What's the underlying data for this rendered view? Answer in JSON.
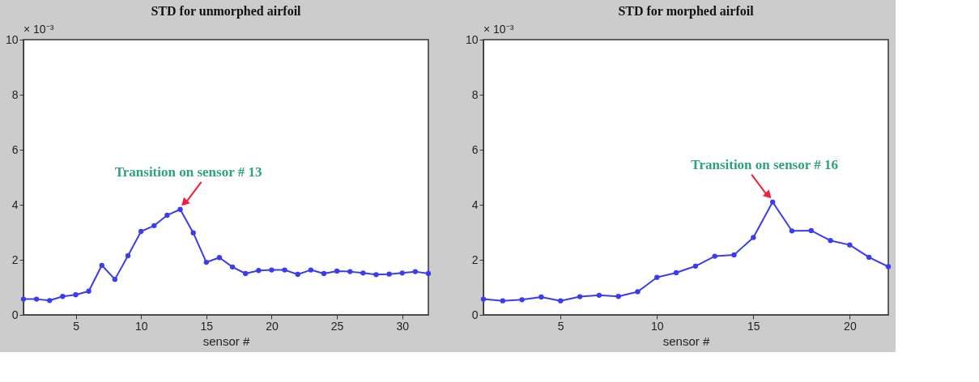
{
  "chart_data": [
    {
      "type": "line",
      "title": "STD for unmorphed airfoil",
      "xlabel": "sensor #",
      "x": [
        1,
        2,
        3,
        4,
        5,
        6,
        7,
        8,
        9,
        10,
        11,
        12,
        13,
        14,
        15,
        16,
        17,
        18,
        19,
        20,
        21,
        22,
        23,
        24,
        25,
        26,
        27,
        28,
        29,
        30,
        31,
        32
      ],
      "series": [
        {
          "color": "#3b3bf0",
          "values": [
            0.57,
            0.57,
            0.52,
            0.67,
            0.73,
            0.86,
            1.8,
            1.29,
            2.15,
            3.03,
            3.24,
            3.62,
            3.83,
            2.98,
            1.91,
            2.08,
            1.74,
            1.5,
            1.61,
            1.63,
            1.63,
            1.47,
            1.63,
            1.5,
            1.59,
            1.57,
            1.52,
            1.46,
            1.48,
            1.52,
            1.57,
            1.5
          ]
        }
      ],
      "annotations": [
        "× 10⁻³",
        {
          "text": "Transition on sensor # 13",
          "x": 13,
          "y": 3.83
        }
      ],
      "xlim": [
        1,
        32
      ],
      "xticks": [
        5,
        10,
        15,
        20,
        25,
        30
      ],
      "ylim": [
        0,
        10
      ],
      "yticks": [
        0,
        2,
        4,
        6,
        8,
        10
      ],
      "grid": false,
      "marker": "circle",
      "line_style": "solid"
    },
    {
      "type": "line",
      "title": "STD for morphed airfoil",
      "xlabel": "sensor #",
      "x": [
        1,
        2,
        3,
        4,
        5,
        6,
        7,
        8,
        9,
        10,
        11,
        12,
        13,
        14,
        15,
        16,
        17,
        18,
        19,
        20,
        21,
        22
      ],
      "series": [
        {
          "color": "#3b3bf0",
          "values": [
            0.57,
            0.51,
            0.55,
            0.65,
            0.51,
            0.66,
            0.71,
            0.67,
            0.84,
            1.36,
            1.53,
            1.77,
            2.13,
            2.18,
            2.81,
            4.1,
            3.05,
            3.06,
            2.7,
            2.54,
            2.09,
            1.75
          ]
        }
      ],
      "annotations": [
        "× 10⁻³",
        {
          "text": "Transition on sensor # 16",
          "x": 16,
          "y": 4.1
        }
      ],
      "xlim": [
        1,
        22
      ],
      "xticks": [
        5,
        10,
        15,
        20
      ],
      "ylim": [
        0,
        10
      ],
      "yticks": [
        0,
        2,
        4,
        6,
        8,
        10
      ],
      "grid": false,
      "marker": "circle",
      "line_style": "solid"
    }
  ]
}
